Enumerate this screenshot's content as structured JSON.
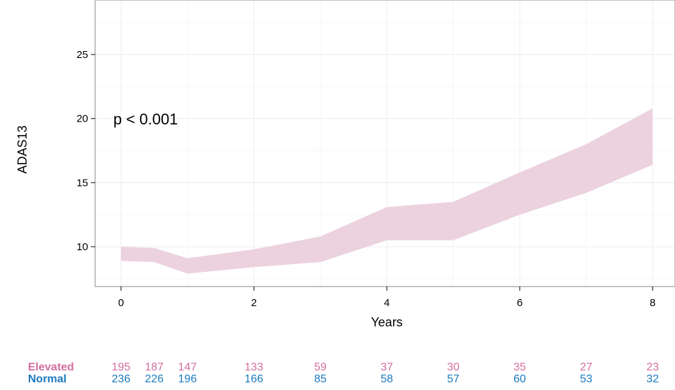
{
  "chart_data": {
    "type": "area",
    "xlabel": "Years",
    "ylabel": "ADAS13",
    "xlim": [
      -0.4,
      8.35
    ],
    "ylim": [
      7.0,
      28.5
    ],
    "x_ticks": [
      0,
      2,
      4,
      6,
      8
    ],
    "y_ticks": [
      10,
      15,
      20,
      25
    ],
    "grid": true,
    "annotation": "p < 0.001",
    "band_color": "#ecd2df",
    "series": [
      {
        "type": "ribbon",
        "x": [
          0,
          0.5,
          1,
          2,
          3,
          4,
          5,
          6,
          7,
          8
        ],
        "lower": [
          8.9,
          8.8,
          7.9,
          8.4,
          8.8,
          10.5,
          10.5,
          12.5,
          14.2,
          16.4
        ],
        "upper": [
          10.0,
          9.9,
          9.1,
          9.8,
          10.8,
          13.1,
          13.5,
          15.8,
          18.0,
          20.8
        ]
      }
    ],
    "risk_table": {
      "times": [
        0,
        0.5,
        1,
        2,
        3,
        4,
        5,
        6,
        7,
        8
      ],
      "rows": [
        {
          "label": "Elevated",
          "color": "#d36f9f",
          "values": [
            "195",
            "187",
            "147",
            "133",
            "59",
            "37",
            "30",
            "35",
            "27",
            "23"
          ]
        },
        {
          "label": "Normal",
          "color": "#1a7abf",
          "values": [
            "236",
            "226",
            "196",
            "166",
            "85",
            "58",
            "57",
            "60",
            "53",
            "32"
          ]
        }
      ]
    }
  }
}
